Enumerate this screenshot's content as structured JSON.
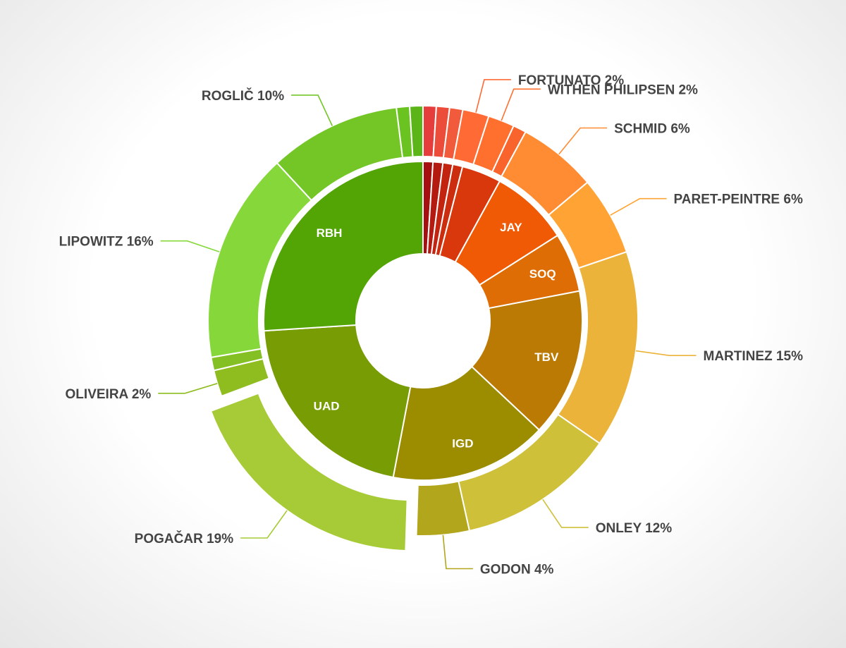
{
  "chart_data": {
    "type": "sunburst",
    "inner_ring": [
      {
        "code": "",
        "value": 1,
        "color": "#a60f0f"
      },
      {
        "code": "",
        "value": 1,
        "color": "#b51a10"
      },
      {
        "code": "",
        "value": 1,
        "color": "#c22410"
      },
      {
        "code": "",
        "value": 1,
        "color": "#cc2d0e"
      },
      {
        "code": "",
        "value": 4,
        "color": "#d8380c"
      },
      {
        "code": "JAY",
        "value": 8,
        "color": "#f05a05"
      },
      {
        "code": "SOQ",
        "value": 6,
        "color": "#df6d05"
      },
      {
        "code": "TBV",
        "value": 15,
        "color": "#bb7a03"
      },
      {
        "code": "IGD",
        "value": 16,
        "color": "#9c8d00"
      },
      {
        "code": "UAD",
        "value": 21,
        "color": "#789c04"
      },
      {
        "code": "RBH",
        "value": 26,
        "color": "#53a505"
      }
    ],
    "outer_ring": [
      {
        "label": "",
        "value": 1,
        "color": "#e53c3c",
        "exploded": false
      },
      {
        "label": "",
        "value": 1,
        "color": "#ec4c3a",
        "exploded": false
      },
      {
        "label": "",
        "value": 1,
        "color": "#f15a3a",
        "exploded": false
      },
      {
        "label": "FORTUNATO 2%",
        "value": 2,
        "color": "#ff6a35",
        "exploded": false
      },
      {
        "label": "WITHEN PHILIPSEN 2%",
        "value": 2,
        "color": "#ff6f2e",
        "exploded": false
      },
      {
        "label": "",
        "value": 1,
        "color": "#f8642c",
        "exploded": false
      },
      {
        "label": "SCHMID 6%",
        "value": 6,
        "color": "#ff8b33",
        "exploded": false
      },
      {
        "label": "PARET-PEINTRE 6%",
        "value": 6,
        "color": "#ffa434",
        "exploded": false
      },
      {
        "label": "MARTINEZ 15%",
        "value": 15,
        "color": "#ebb33a",
        "exploded": false
      },
      {
        "label": "ONLEY 12%",
        "value": 12,
        "color": "#cfc03a",
        "exploded": false
      },
      {
        "label": "GODON 4%",
        "value": 4,
        "color": "#b1a61c",
        "exploded": false
      },
      {
        "label": "POGAČAR 19%",
        "value": 19,
        "color": "#a6cb36",
        "exploded": true
      },
      {
        "label": "OLIVEIRA 2%",
        "value": 2,
        "color": "#8fbc1e",
        "exploded": false
      },
      {
        "label": "",
        "value": 1,
        "color": "#84c024",
        "exploded": false
      },
      {
        "label": "LIPOWITZ 16%",
        "value": 16,
        "color": "#86d83a",
        "exploded": false
      },
      {
        "label": "ROGLIČ 10%",
        "value": 10,
        "color": "#74c627",
        "exploded": false
      },
      {
        "label": "",
        "value": 1,
        "color": "#6bc322",
        "exploded": false
      },
      {
        "label": "",
        "value": 1,
        "color": "#5bb518",
        "exploded": false
      }
    ]
  }
}
